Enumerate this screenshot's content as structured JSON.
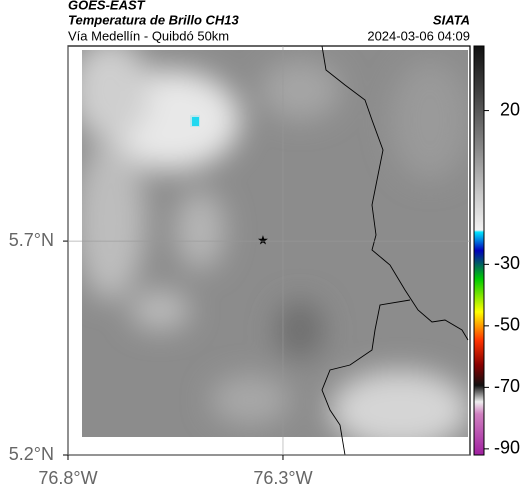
{
  "header": {
    "satellite": "GOES-EAST",
    "title": "Temperatura de Brillo CH13",
    "subtitle": "Vía Medellín - Quibdó 50km",
    "source": "SIATA",
    "timestamp": "2024-03-06 04:09"
  },
  "map": {
    "latlim": [
      5.2,
      6.156
    ],
    "lonlim": [
      -76.8,
      -75.865
    ],
    "lat_ticks": [
      {
        "value": 5.2,
        "label": "5.2°N"
      },
      {
        "value": 5.7,
        "label": "5.7°N"
      }
    ],
    "lon_ticks": [
      {
        "value": -76.8,
        "label": "76.8°W"
      },
      {
        "value": -76.3,
        "label": "76.3°W"
      }
    ]
  },
  "colorbar": {
    "lim": [
      -92,
      41
    ],
    "ticks": [
      20,
      -30,
      -50,
      -70,
      -90
    ]
  }
}
